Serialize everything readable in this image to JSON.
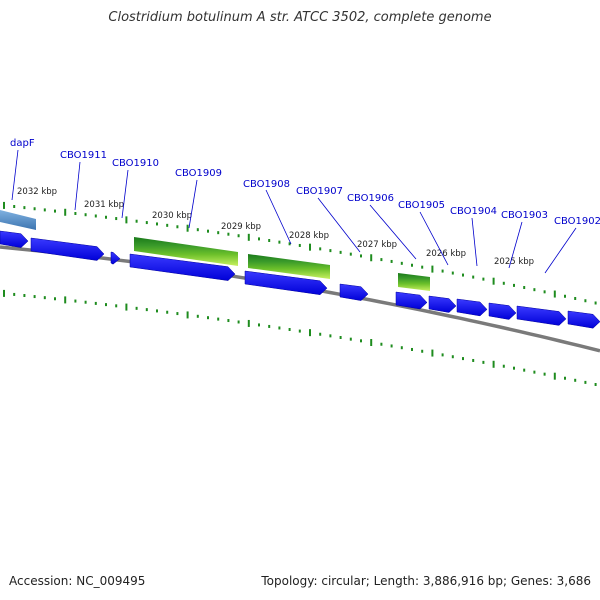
{
  "title": "Clostridium botulinum A str. ATCC 3502, complete genome",
  "footer": {
    "accession": "Accession: NC_009495",
    "topology": "Topology: circular; Length: 3,886,916 bp; Genes: 3,686"
  },
  "colors": {
    "gene_blue": "#1a1aff",
    "gene_blue_light": "#4a4aff",
    "gene_steel": "#4e86c0",
    "green_dark": "#1a7a1a",
    "green_mid": "#6cc02a",
    "green_light": "#c8f060",
    "backbone": "#7a7a7a",
    "tick_green": "#1e8c1e",
    "label_blue": "#0000cc"
  },
  "scale_labels": [
    "2032 kbp",
    "2031 kbp",
    "2030 kbp",
    "2029 kbp",
    "2028 kbp",
    "2027 kbp",
    "2026 kbp",
    "2025 kbp"
  ],
  "gene_labels": [
    "dapF",
    "CBO1911",
    "CBO1910",
    "CBO1909",
    "CBO1908",
    "CBO1907",
    "CBO1906",
    "CBO1905",
    "CBO1904",
    "CBO1903",
    "CBO1902"
  ]
}
